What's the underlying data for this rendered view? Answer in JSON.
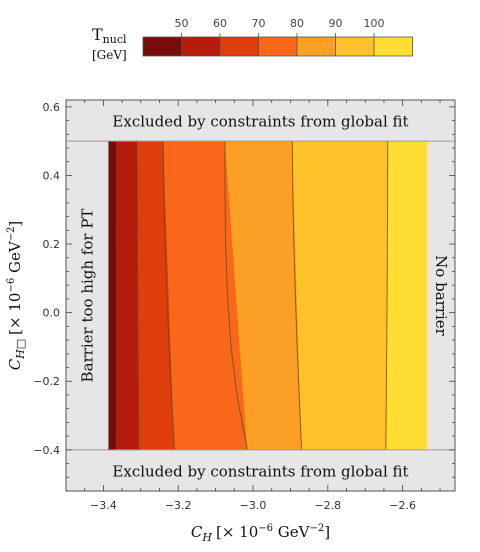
{
  "chart_data": {
    "type": "heatmap",
    "xlabel_var": "C",
    "xlabel_sub": "H",
    "xlabel_units": "[× 10",
    "xlabel_exp": "−6",
    "xlabel_tail": " GeV",
    "xlabel_tail_exp": "−2",
    "xlabel_close": "]",
    "ylabel_var": "C",
    "ylabel_sub": "H□",
    "ylabel_units": "[× 10",
    "ylabel_exp": "−6",
    "ylabel_tail": " GeV",
    "ylabel_tail_exp": "−2",
    "ylabel_close": "]",
    "xlim": [
      -3.5,
      -2.46
    ],
    "ylim": [
      -0.52,
      0.62
    ],
    "x_ticks": [
      {
        "value": -3.4,
        "label": "−3.4"
      },
      {
        "value": -3.2,
        "label": "−3.2"
      },
      {
        "value": -3.0,
        "label": "−3.0"
      },
      {
        "value": -2.8,
        "label": "−2.8"
      },
      {
        "value": -2.6,
        "label": "−2.6"
      }
    ],
    "y_ticks": [
      {
        "value": 0.6,
        "label": "0.6"
      },
      {
        "value": 0.4,
        "label": "0.4"
      },
      {
        "value": 0.2,
        "label": "0.2"
      },
      {
        "value": 0.0,
        "label": "0.0"
      },
      {
        "value": -0.2,
        "label": "−0.2"
      },
      {
        "value": -0.4,
        "label": "−0.4"
      }
    ],
    "legend": {
      "title_main": "T",
      "title_sub": "nucl",
      "unit": "[GeV]",
      "tick_values": [
        50,
        60,
        70,
        80,
        90,
        100
      ],
      "colors": [
        "#7a0b0b",
        "#b51c0c",
        "#de3d0c",
        "#f9681a",
        "#fb9f25",
        "#fdc12a",
        "#fede33"
      ]
    },
    "band_colors": [
      "#7a0b0b",
      "#b51c0c",
      "#de3d0c",
      "#f9681a",
      "#fb9f25",
      "#fdc12a",
      "#fede33"
    ],
    "contours": [
      {
        "level": 50,
        "top_x": -3.365,
        "bottom_x": -3.365
      },
      {
        "level": 60,
        "top_x": -3.31,
        "bottom_x": -3.305
      },
      {
        "level": 70,
        "top_x": -3.24,
        "bottom_x": -3.21
      },
      {
        "level": 80,
        "top_x": -3.075,
        "bottom_x": -3.015
      },
      {
        "level": 90,
        "top_x": -2.895,
        "bottom_x": -2.87
      },
      {
        "level": 100,
        "top_x": -2.64,
        "bottom_x": -2.645
      }
    ],
    "valid_x_range": [
      -3.385,
      -2.535
    ],
    "valid_y_range": [
      -0.4,
      0.5
    ],
    "regions": {
      "top": "Excluded by constraints from global fit",
      "bottom": "Excluded by constraints from global fit",
      "left": "Barrier too high for PT",
      "right": "No barrier"
    },
    "excluded_color": "#e6e6e6"
  }
}
